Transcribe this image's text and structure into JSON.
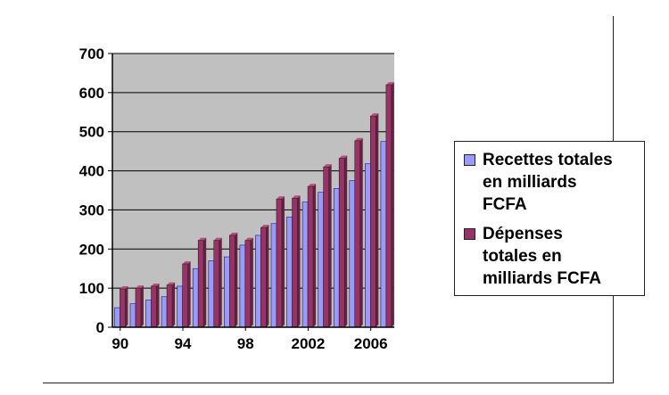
{
  "chart_data": {
    "type": "bar",
    "title": "",
    "xlabel": "",
    "ylabel": "",
    "ylim": [
      0,
      700
    ],
    "y_ticks": [
      "0",
      "100",
      "200",
      "300",
      "400",
      "500",
      "600",
      "700"
    ],
    "categories": [
      "1990",
      "1991",
      "1992",
      "1993",
      "1994",
      "1995",
      "1996",
      "1997",
      "1998",
      "1999",
      "2000",
      "2001",
      "2002",
      "2003",
      "2004",
      "2005",
      "2006",
      "2007"
    ],
    "x_tick_labels": [
      "90",
      "94",
      "98",
      "2002",
      "2006"
    ],
    "x_tick_categories": [
      "1990",
      "1994",
      "1998",
      "2002",
      "2006"
    ],
    "grid": true,
    "plot_background": "#c0c0c0",
    "legend_position": "right",
    "series": [
      {
        "name": "Recettes totales en milliards FCFA",
        "color": "#9999ff",
        "values": [
          50,
          60,
          70,
          78,
          105,
          150,
          170,
          180,
          210,
          235,
          265,
          282,
          320,
          345,
          355,
          375,
          418,
          475
        ]
      },
      {
        "name": "Dépenses totales en milliards FCFA",
        "color": "#993366",
        "values": [
          98,
          100,
          105,
          108,
          162,
          222,
          222,
          235,
          222,
          255,
          328,
          330,
          360,
          410,
          432,
          477,
          540,
          620
        ]
      }
    ]
  },
  "legend": {
    "items": [
      {
        "label": "Recettes totales\nen milliards\nFCFA",
        "color": "#9999ff"
      },
      {
        "label": "Dépenses\ntotales en\nmilliards FCFA",
        "color": "#993366"
      }
    ]
  }
}
